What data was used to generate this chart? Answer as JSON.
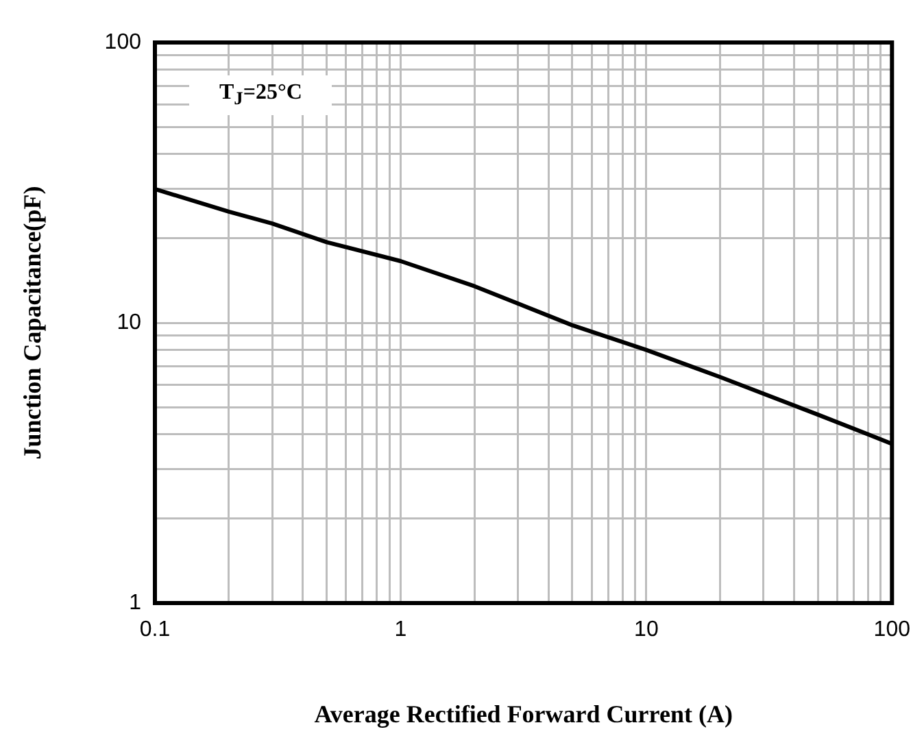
{
  "chart_data": {
    "type": "line",
    "xlabel": "Average Rectified Forward Current (A)",
    "ylabel": "Junction Capacitance(pF)",
    "annotations": [
      "T$_{J}$=25°C"
    ],
    "log": "xy",
    "grid": true,
    "legend": false,
    "marker": "none",
    "line_style": "solid",
    "x": [
      0.1,
      0.2,
      0.3,
      0.5,
      1,
      2,
      5,
      10,
      20,
      50,
      100
    ],
    "series": [
      {
        "color": "#000000",
        "values": [
          30,
          24.9,
          22.6,
          19.4,
          16.6,
          13.5,
          9.8,
          8.0,
          6.4,
          4.7,
          3.7
        ]
      }
    ],
    "xlim": [
      0.1,
      100
    ],
    "ylim": [
      1,
      100
    ],
    "xticks": [
      0.1,
      {
        "value": 0.2,
        "label": null
      },
      {
        "value": 0.3,
        "label": null
      },
      {
        "value": 0.4,
        "label": null
      },
      {
        "value": 0.5,
        "label": null
      },
      {
        "value": 0.6,
        "label": null
      },
      {
        "value": 0.7,
        "label": null
      },
      {
        "value": 0.8,
        "label": null
      },
      {
        "value": 0.9,
        "label": null
      },
      1,
      {
        "value": 2,
        "label": null
      },
      {
        "value": 3,
        "label": null
      },
      {
        "value": 4,
        "label": null
      },
      {
        "value": 5,
        "label": null
      },
      {
        "value": 6,
        "label": null
      },
      {
        "value": 7,
        "label": null
      },
      {
        "value": 8,
        "label": null
      },
      {
        "value": 9,
        "label": null
      },
      10,
      {
        "value": 20,
        "label": null
      },
      {
        "value": 30,
        "label": null
      },
      {
        "value": 40,
        "label": null
      },
      {
        "value": 50,
        "label": null
      },
      {
        "value": 60,
        "label": null
      },
      {
        "value": 70,
        "label": null
      },
      {
        "value": 80,
        "label": null
      },
      {
        "value": 90,
        "label": null
      },
      100
    ],
    "yticks": [
      1,
      {
        "value": 2,
        "label": null
      },
      {
        "value": 3,
        "label": null
      },
      {
        "value": 4,
        "label": null
      },
      {
        "value": 5,
        "label": null
      },
      {
        "value": 6,
        "label": null
      },
      {
        "value": 7,
        "label": null
      },
      {
        "value": 8,
        "label": null
      },
      {
        "value": 9,
        "label": null
      },
      10,
      {
        "value": 20,
        "label": null
      },
      {
        "value": 30,
        "label": null
      },
      {
        "value": 40,
        "label": null
      },
      {
        "value": 50,
        "label": null
      },
      {
        "value": 60,
        "label": null
      },
      {
        "value": 70,
        "label": null
      },
      {
        "value": 80,
        "label": null
      },
      {
        "value": 90,
        "label": null
      },
      100
    ]
  }
}
